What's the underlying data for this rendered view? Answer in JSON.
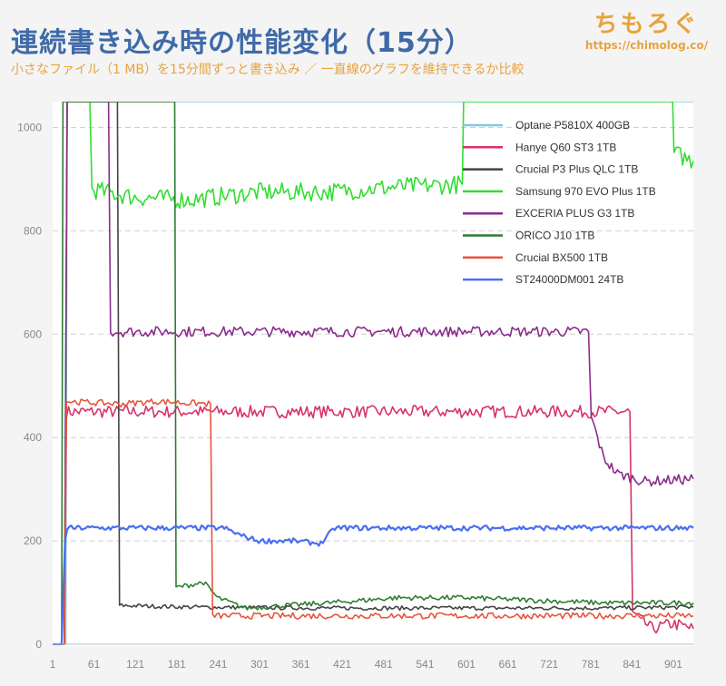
{
  "header": {
    "title": "連続書き込み時の性能変化（15分）",
    "subtitle": "小さなファイル（1 MB）を15分間ずっと書き込み ／ 一直線のグラフを維持できるか比較"
  },
  "logo": {
    "text": "ちもろぐ",
    "url": "https://chimolog.co/"
  },
  "colors": {
    "background": "#f4f4f4",
    "plot_bg": "#ffffff",
    "grid": "#d0d0d0",
    "title": "#3f6aa8",
    "accent": "#e8a33c"
  },
  "chart_data": {
    "type": "line",
    "xlim": [
      1,
      930
    ],
    "ylim": [
      0,
      1050
    ],
    "yticks": [
      0,
      200,
      400,
      600,
      800,
      1000
    ],
    "xticks": [
      1,
      61,
      121,
      181,
      241,
      301,
      361,
      421,
      481,
      541,
      601,
      661,
      721,
      781,
      841,
      901
    ],
    "grid": "horizontal dashed",
    "legend_position": "top-right",
    "series": [
      {
        "name": "Optane P5810X 400GB",
        "color": "#7ec8e3",
        "points": [
          [
            20,
            0
          ],
          [
            22,
            1050
          ],
          [
            930,
            1050
          ]
        ]
      },
      {
        "name": "Hanye Q60 ST3 1TB",
        "color": "#d6336c",
        "noise": 12,
        "points": [
          [
            1,
            0
          ],
          [
            18,
            0
          ],
          [
            21,
            450
          ],
          [
            100,
            450
          ],
          [
            200,
            450
          ],
          [
            300,
            450
          ],
          [
            400,
            450
          ],
          [
            500,
            450
          ],
          [
            600,
            450
          ],
          [
            700,
            450
          ],
          [
            838,
            450
          ],
          [
            842,
            60
          ],
          [
            870,
            30
          ],
          [
            900,
            40
          ],
          [
            930,
            30
          ]
        ]
      },
      {
        "name": "Crucial P3 Plus QLC 1TB",
        "color": "#444444",
        "noise": 4,
        "points": [
          [
            1,
            0
          ],
          [
            18,
            0
          ],
          [
            22,
            1050
          ],
          [
            95,
            1050
          ],
          [
            98,
            75
          ],
          [
            200,
            72
          ],
          [
            400,
            70
          ],
          [
            600,
            70
          ],
          [
            800,
            70
          ],
          [
            930,
            72
          ]
        ]
      },
      {
        "name": "Samsung 970 EVO Plus 1TB",
        "color": "#33dd33",
        "noise": 18,
        "points": [
          [
            1,
            0
          ],
          [
            18,
            0
          ],
          [
            22,
            1050
          ],
          [
            55,
            1050
          ],
          [
            58,
            880
          ],
          [
            120,
            865
          ],
          [
            200,
            860
          ],
          [
            300,
            875
          ],
          [
            400,
            875
          ],
          [
            500,
            885
          ],
          [
            595,
            890
          ],
          [
            597,
            1050
          ],
          [
            900,
            1050
          ],
          [
            902,
            950
          ],
          [
            930,
            935
          ]
        ]
      },
      {
        "name": "EXCERIA PLUS G3 1TB",
        "color": "#8b2c8c",
        "noise": 10,
        "points": [
          [
            1,
            0
          ],
          [
            18,
            0
          ],
          [
            22,
            1050
          ],
          [
            82,
            1050
          ],
          [
            85,
            605
          ],
          [
            300,
            605
          ],
          [
            500,
            605
          ],
          [
            778,
            605
          ],
          [
            782,
            440
          ],
          [
            800,
            360
          ],
          [
            820,
            330
          ],
          [
            860,
            315
          ],
          [
            930,
            320
          ]
        ]
      },
      {
        "name": "ORICO J10 1TB",
        "color": "#2e7d32",
        "noise": 5,
        "points": [
          [
            1,
            0
          ],
          [
            14,
            0
          ],
          [
            16,
            1050
          ],
          [
            178,
            1050
          ],
          [
            180,
            110
          ],
          [
            220,
            120
          ],
          [
            240,
            90
          ],
          [
            280,
            70
          ],
          [
            400,
            80
          ],
          [
            500,
            90
          ],
          [
            600,
            90
          ],
          [
            700,
            85
          ],
          [
            800,
            80
          ],
          [
            930,
            80
          ]
        ]
      },
      {
        "name": "Crucial BX500 1TB",
        "color": "#e8553c",
        "noise": 6,
        "points": [
          [
            1,
            0
          ],
          [
            18,
            0
          ],
          [
            21,
            470
          ],
          [
            100,
            465
          ],
          [
            150,
            470
          ],
          [
            230,
            465
          ],
          [
            233,
            55
          ],
          [
            400,
            55
          ],
          [
            600,
            55
          ],
          [
            800,
            55
          ],
          [
            930,
            55
          ]
        ]
      },
      {
        "name": "ST24000DM001 24TB",
        "color": "#4a6ff0",
        "noise": 5,
        "points": [
          [
            1,
            0
          ],
          [
            14,
            0
          ],
          [
            19,
            200
          ],
          [
            22,
            225
          ],
          [
            250,
            225
          ],
          [
            275,
            210
          ],
          [
            300,
            200
          ],
          [
            350,
            200
          ],
          [
            390,
            195
          ],
          [
            410,
            225
          ],
          [
            600,
            225
          ],
          [
            800,
            225
          ],
          [
            930,
            225
          ]
        ]
      }
    ]
  }
}
